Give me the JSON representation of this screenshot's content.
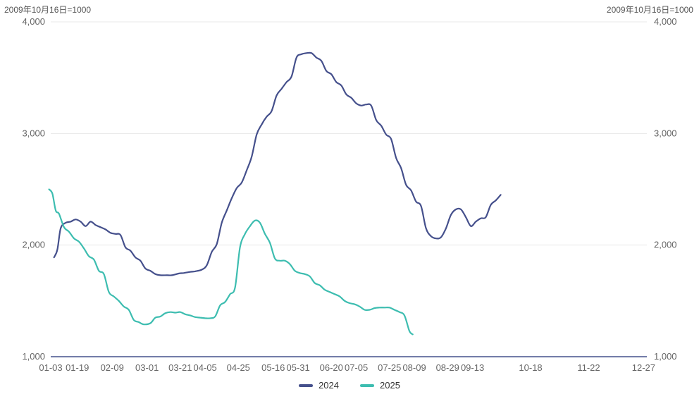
{
  "chart_data": {
    "type": "line",
    "unit_label_left": "2009年10月16日=1000",
    "unit_label_right": "2009年10月16日=1000",
    "x_tick_labels": [
      "01-03",
      "01-19",
      "02-09",
      "03-01",
      "03-21",
      "04-05",
      "04-25",
      "05-16",
      "05-31",
      "06-20",
      "07-05",
      "07-25",
      "08-09",
      "08-29",
      "09-13",
      "10-18",
      "11-22",
      "12-27"
    ],
    "y_tick_labels": [
      "1,000",
      "2,000",
      "3,000",
      "4,000"
    ],
    "ylim": [
      1000,
      4000
    ],
    "grid": true,
    "legend_position": "bottom",
    "series": [
      {
        "name": "2024",
        "color": "#45508c",
        "points": [
          [
            "01-05",
            1890
          ],
          [
            "01-07",
            1960
          ],
          [
            "01-09",
            2150
          ],
          [
            "01-12",
            2200
          ],
          [
            "01-15",
            2210
          ],
          [
            "01-18",
            2230
          ],
          [
            "01-21",
            2210
          ],
          [
            "01-24",
            2170
          ],
          [
            "01-27",
            2210
          ],
          [
            "01-30",
            2180
          ],
          [
            "02-02",
            2160
          ],
          [
            "02-05",
            2140
          ],
          [
            "02-08",
            2110
          ],
          [
            "02-11",
            2100
          ],
          [
            "02-14",
            2090
          ],
          [
            "02-17",
            1980
          ],
          [
            "02-20",
            1950
          ],
          [
            "02-23",
            1890
          ],
          [
            "02-26",
            1860
          ],
          [
            "02-29",
            1790
          ],
          [
            "03-03",
            1770
          ],
          [
            "03-06",
            1740
          ],
          [
            "03-09",
            1730
          ],
          [
            "03-13",
            1730
          ],
          [
            "03-16",
            1730
          ],
          [
            "03-20",
            1745
          ],
          [
            "03-23",
            1750
          ],
          [
            "03-27",
            1760
          ],
          [
            "03-30",
            1765
          ],
          [
            "04-03",
            1780
          ],
          [
            "04-06",
            1820
          ],
          [
            "04-09",
            1940
          ],
          [
            "04-12",
            2010
          ],
          [
            "04-15",
            2200
          ],
          [
            "04-18",
            2310
          ],
          [
            "04-21",
            2420
          ],
          [
            "04-24",
            2510
          ],
          [
            "04-27",
            2560
          ],
          [
            "04-30",
            2670
          ],
          [
            "05-03",
            2790
          ],
          [
            "05-06",
            2990
          ],
          [
            "05-09",
            3080
          ],
          [
            "05-12",
            3150
          ],
          [
            "05-15",
            3200
          ],
          [
            "05-18",
            3340
          ],
          [
            "05-21",
            3400
          ],
          [
            "05-24",
            3460
          ],
          [
            "05-27",
            3510
          ],
          [
            "05-30",
            3680
          ],
          [
            "06-02",
            3710
          ],
          [
            "06-05",
            3720
          ],
          [
            "06-08",
            3720
          ],
          [
            "06-11",
            3680
          ],
          [
            "06-14",
            3650
          ],
          [
            "06-17",
            3560
          ],
          [
            "06-20",
            3530
          ],
          [
            "06-23",
            3460
          ],
          [
            "06-26",
            3430
          ],
          [
            "06-29",
            3350
          ],
          [
            "07-02",
            3320
          ],
          [
            "07-05",
            3270
          ],
          [
            "07-08",
            3250
          ],
          [
            "07-11",
            3260
          ],
          [
            "07-14",
            3250
          ],
          [
            "07-17",
            3120
          ],
          [
            "07-20",
            3070
          ],
          [
            "07-23",
            2990
          ],
          [
            "07-26",
            2950
          ],
          [
            "07-29",
            2780
          ],
          [
            "08-01",
            2690
          ],
          [
            "08-04",
            2540
          ],
          [
            "08-07",
            2490
          ],
          [
            "08-10",
            2390
          ],
          [
            "08-13",
            2350
          ],
          [
            "08-16",
            2150
          ],
          [
            "08-19",
            2080
          ],
          [
            "08-22",
            2060
          ],
          [
            "08-25",
            2070
          ],
          [
            "08-28",
            2150
          ],
          [
            "08-31",
            2270
          ],
          [
            "09-03",
            2320
          ],
          [
            "09-06",
            2320
          ],
          [
            "09-09",
            2250
          ],
          [
            "09-12",
            2170
          ],
          [
            "09-15",
            2210
          ],
          [
            "09-18",
            2240
          ],
          [
            "09-21",
            2250
          ],
          [
            "09-24",
            2360
          ],
          [
            "09-27",
            2400
          ],
          [
            "09-30",
            2450
          ]
        ]
      },
      {
        "name": "2025",
        "color": "#3dbdb0",
        "points": [
          [
            "01-02",
            2500
          ],
          [
            "01-04",
            2460
          ],
          [
            "01-06",
            2310
          ],
          [
            "01-08",
            2280
          ],
          [
            "01-11",
            2160
          ],
          [
            "01-14",
            2120
          ],
          [
            "01-17",
            2060
          ],
          [
            "01-20",
            2030
          ],
          [
            "01-23",
            1970
          ],
          [
            "01-26",
            1900
          ],
          [
            "01-29",
            1870
          ],
          [
            "02-01",
            1770
          ],
          [
            "02-04",
            1740
          ],
          [
            "02-07",
            1580
          ],
          [
            "02-10",
            1540
          ],
          [
            "02-13",
            1500
          ],
          [
            "02-16",
            1450
          ],
          [
            "02-19",
            1420
          ],
          [
            "02-22",
            1330
          ],
          [
            "02-25",
            1310
          ],
          [
            "02-28",
            1290
          ],
          [
            "03-03",
            1300
          ],
          [
            "03-06",
            1350
          ],
          [
            "03-09",
            1360
          ],
          [
            "03-12",
            1390
          ],
          [
            "03-15",
            1400
          ],
          [
            "03-18",
            1395
          ],
          [
            "03-21",
            1400
          ],
          [
            "03-24",
            1380
          ],
          [
            "03-27",
            1370
          ],
          [
            "03-30",
            1355
          ],
          [
            "04-02",
            1350
          ],
          [
            "04-05",
            1345
          ],
          [
            "04-08",
            1345
          ],
          [
            "04-11",
            1360
          ],
          [
            "04-14",
            1460
          ],
          [
            "04-17",
            1490
          ],
          [
            "04-20",
            1560
          ],
          [
            "04-23",
            1620
          ],
          [
            "04-26",
            1980
          ],
          [
            "04-29",
            2100
          ],
          [
            "05-02",
            2170
          ],
          [
            "05-05",
            2220
          ],
          [
            "05-08",
            2200
          ],
          [
            "05-11",
            2100
          ],
          [
            "05-14",
            2020
          ],
          [
            "05-17",
            1880
          ],
          [
            "05-20",
            1860
          ],
          [
            "05-23",
            1860
          ],
          [
            "05-26",
            1830
          ],
          [
            "05-29",
            1770
          ],
          [
            "06-01",
            1750
          ],
          [
            "06-04",
            1740
          ],
          [
            "06-07",
            1720
          ],
          [
            "06-10",
            1660
          ],
          [
            "06-13",
            1640
          ],
          [
            "06-16",
            1600
          ],
          [
            "06-19",
            1580
          ],
          [
            "06-22",
            1560
          ],
          [
            "06-25",
            1540
          ],
          [
            "06-28",
            1500
          ],
          [
            "07-01",
            1480
          ],
          [
            "07-04",
            1470
          ],
          [
            "07-07",
            1450
          ],
          [
            "07-10",
            1420
          ],
          [
            "07-13",
            1420
          ],
          [
            "07-16",
            1435
          ],
          [
            "07-19",
            1440
          ],
          [
            "07-22",
            1440
          ],
          [
            "07-25",
            1440
          ],
          [
            "07-28",
            1420
          ],
          [
            "07-31",
            1400
          ],
          [
            "08-03",
            1370
          ],
          [
            "08-06",
            1230
          ],
          [
            "08-08",
            1200
          ]
        ]
      }
    ]
  }
}
